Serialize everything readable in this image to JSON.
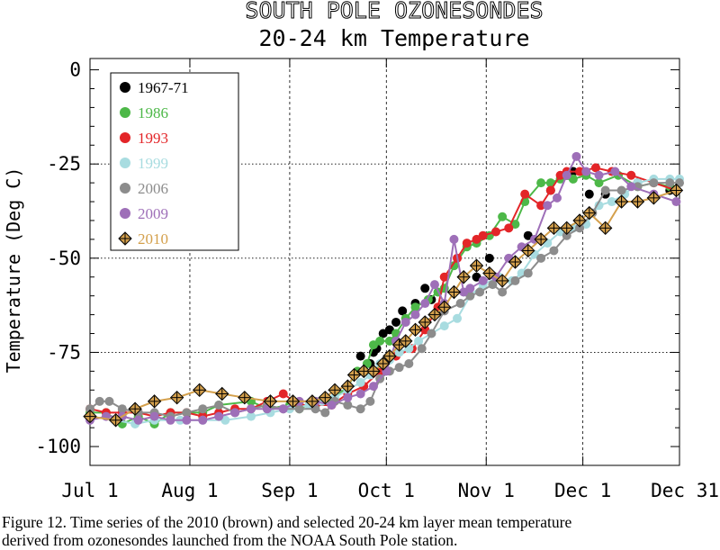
{
  "chart_data": {
    "type": "line",
    "title": "SOUTH POLE OZONESONDES",
    "subtitle": "20-24 km Temperature",
    "ylabel": "Temperature (Deg C)",
    "xlabel": "",
    "ylim": [
      -105,
      3
    ],
    "xlim": [
      0,
      183
    ],
    "x_unit": "days since Jul 1",
    "x_ticks": [
      {
        "x": 0,
        "label": "Jul 1"
      },
      {
        "x": 31,
        "label": "Aug 1"
      },
      {
        "x": 62,
        "label": "Sep 1"
      },
      {
        "x": 92,
        "label": "Oct 1"
      },
      {
        "x": 123,
        "label": "Nov 1"
      },
      {
        "x": 153,
        "label": "Dec 1"
      },
      {
        "x": 183,
        "label": "Dec 31"
      }
    ],
    "y_ticks": [
      0,
      -25,
      -50,
      -75,
      -100
    ],
    "y_tick_labels": [
      "0",
      "-25",
      "-50",
      "-75",
      "-100"
    ],
    "grid": "dotted",
    "legend_position": "top-left",
    "series": [
      {
        "name": "1967-71",
        "color": "#000000",
        "marker": "dot",
        "line": false,
        "points": [
          [
            84,
            -76
          ],
          [
            87,
            -78
          ],
          [
            88,
            -75
          ],
          [
            89,
            -74
          ],
          [
            91,
            -70
          ],
          [
            93,
            -69
          ],
          [
            95,
            -67
          ],
          [
            97,
            -64
          ],
          [
            101,
            -62
          ],
          [
            104,
            -58
          ],
          [
            106,
            -61
          ],
          [
            108,
            -64
          ],
          [
            120,
            -55
          ],
          [
            124,
            -50
          ],
          [
            136,
            -44
          ],
          [
            143,
            -32
          ],
          [
            150,
            -27
          ],
          [
            155,
            -33
          ],
          [
            160,
            -33
          ],
          [
            170,
            -30
          ],
          [
            175,
            -34
          ],
          [
            180,
            -32
          ]
        ]
      },
      {
        "name": "1986",
        "color": "#4db848",
        "marker": "dot",
        "line": true,
        "points": [
          [
            0,
            -91
          ],
          [
            5,
            -91
          ],
          [
            10,
            -94
          ],
          [
            15,
            -92
          ],
          [
            20,
            -94
          ],
          [
            25,
            -91
          ],
          [
            35,
            -91
          ],
          [
            40,
            -89
          ],
          [
            50,
            -88
          ],
          [
            55,
            -90
          ],
          [
            62,
            -89
          ],
          [
            65,
            -90
          ],
          [
            70,
            -88
          ],
          [
            75,
            -88
          ],
          [
            80,
            -84
          ],
          [
            83,
            -80
          ],
          [
            86,
            -78
          ],
          [
            88,
            -73
          ],
          [
            90,
            -72
          ],
          [
            93,
            -72
          ],
          [
            95,
            -70
          ],
          [
            98,
            -66
          ],
          [
            101,
            -63
          ],
          [
            105,
            -61
          ],
          [
            108,
            -59
          ],
          [
            110,
            -58
          ],
          [
            113,
            -52
          ],
          [
            117,
            -47
          ],
          [
            120,
            -46
          ],
          [
            124,
            -44
          ],
          [
            128,
            -39
          ],
          [
            132,
            -41
          ],
          [
            135,
            -35
          ],
          [
            140,
            -30
          ],
          [
            143,
            -30
          ],
          [
            146,
            -29
          ],
          [
            150,
            -29
          ],
          [
            154,
            -28
          ],
          [
            158,
            -30
          ],
          [
            164,
            -28
          ],
          [
            170,
            -31
          ],
          [
            175,
            -30
          ],
          [
            180,
            -31
          ]
        ]
      },
      {
        "name": "1993",
        "color": "#e32528",
        "marker": "dot",
        "line": true,
        "points": [
          [
            0,
            -90
          ],
          [
            5,
            -91
          ],
          [
            10,
            -91
          ],
          [
            15,
            -91
          ],
          [
            20,
            -92
          ],
          [
            25,
            -91
          ],
          [
            30,
            -91
          ],
          [
            35,
            -92
          ],
          [
            40,
            -91
          ],
          [
            45,
            -90
          ],
          [
            50,
            -90
          ],
          [
            55,
            -88
          ],
          [
            60,
            -86
          ],
          [
            65,
            -89
          ],
          [
            70,
            -89
          ],
          [
            75,
            -89
          ],
          [
            80,
            -86
          ],
          [
            85,
            -84
          ],
          [
            90,
            -80
          ],
          [
            95,
            -76
          ],
          [
            100,
            -74
          ],
          [
            104,
            -69
          ],
          [
            108,
            -63
          ],
          [
            110,
            -55
          ],
          [
            114,
            -50
          ],
          [
            117,
            -46
          ],
          [
            120,
            -45
          ],
          [
            122,
            -44
          ],
          [
            126,
            -43
          ],
          [
            130,
            -42
          ],
          [
            135,
            -33
          ],
          [
            140,
            -36
          ],
          [
            143,
            -32
          ],
          [
            146,
            -28
          ],
          [
            148,
            -27
          ],
          [
            152,
            -27
          ],
          [
            157,
            -26
          ],
          [
            162,
            -27
          ],
          [
            168,
            -28
          ],
          [
            175,
            -30
          ],
          [
            182,
            -32
          ]
        ]
      },
      {
        "name": "1999",
        "color": "#a8dce0",
        "marker": "dot",
        "line": true,
        "points": [
          [
            0,
            -92
          ],
          [
            8,
            -93
          ],
          [
            14,
            -94
          ],
          [
            20,
            -93
          ],
          [
            28,
            -93
          ],
          [
            35,
            -93
          ],
          [
            42,
            -93
          ],
          [
            50,
            -92
          ],
          [
            56,
            -91
          ],
          [
            62,
            -90
          ],
          [
            68,
            -89
          ],
          [
            72,
            -88
          ],
          [
            76,
            -87
          ],
          [
            80,
            -85
          ],
          [
            84,
            -83
          ],
          [
            87,
            -81
          ],
          [
            90,
            -78
          ],
          [
            93,
            -77
          ],
          [
            96,
            -75
          ],
          [
            99,
            -74
          ],
          [
            102,
            -72
          ],
          [
            106,
            -70
          ],
          [
            110,
            -68
          ],
          [
            114,
            -66
          ],
          [
            118,
            -60
          ],
          [
            122,
            -57
          ],
          [
            127,
            -55
          ],
          [
            131,
            -56
          ],
          [
            134,
            -54
          ],
          [
            138,
            -49
          ],
          [
            142,
            -46
          ],
          [
            146,
            -43
          ],
          [
            150,
            -42
          ],
          [
            154,
            -41
          ],
          [
            158,
            -36
          ],
          [
            162,
            -35
          ],
          [
            166,
            -33
          ],
          [
            170,
            -30
          ],
          [
            175,
            -29
          ],
          [
            180,
            -29
          ],
          [
            183,
            -29
          ]
        ]
      },
      {
        "name": "2006",
        "color": "#8c8c8c",
        "marker": "dot",
        "line": true,
        "points": [
          [
            0,
            -90
          ],
          [
            3,
            -88
          ],
          [
            6,
            -88
          ],
          [
            10,
            -90
          ],
          [
            15,
            -91
          ],
          [
            20,
            -91
          ],
          [
            25,
            -92
          ],
          [
            30,
            -91
          ],
          [
            35,
            -90
          ],
          [
            40,
            -89
          ],
          [
            45,
            -91
          ],
          [
            50,
            -90
          ],
          [
            55,
            -89
          ],
          [
            60,
            -90
          ],
          [
            65,
            -90
          ],
          [
            70,
            -90
          ],
          [
            73,
            -91
          ],
          [
            76,
            -88
          ],
          [
            80,
            -89
          ],
          [
            84,
            -90
          ],
          [
            87,
            -88
          ],
          [
            90,
            -82
          ],
          [
            93,
            -80
          ],
          [
            96,
            -79
          ],
          [
            99,
            -78
          ],
          [
            103,
            -74
          ],
          [
            106,
            -70
          ],
          [
            110,
            -64
          ],
          [
            115,
            -62
          ],
          [
            118,
            -60
          ],
          [
            121,
            -59
          ],
          [
            125,
            -57
          ],
          [
            128,
            -59
          ],
          [
            132,
            -56
          ],
          [
            136,
            -54
          ],
          [
            140,
            -50
          ],
          [
            144,
            -48
          ],
          [
            148,
            -44
          ],
          [
            152,
            -42
          ],
          [
            156,
            -38
          ],
          [
            160,
            -32
          ],
          [
            165,
            -32
          ],
          [
            170,
            -31
          ],
          [
            175,
            -30
          ],
          [
            180,
            -30
          ],
          [
            183,
            -30
          ]
        ]
      },
      {
        "name": "2009",
        "color": "#9e6fb8",
        "marker": "dot",
        "line": true,
        "points": [
          [
            0,
            -93
          ],
          [
            5,
            -92
          ],
          [
            10,
            -92
          ],
          [
            15,
            -93
          ],
          [
            20,
            -92
          ],
          [
            25,
            -93
          ],
          [
            30,
            -93
          ],
          [
            35,
            -93
          ],
          [
            40,
            -92
          ],
          [
            45,
            -91
          ],
          [
            50,
            -90
          ],
          [
            55,
            -90
          ],
          [
            60,
            -90
          ],
          [
            65,
            -88
          ],
          [
            70,
            -88
          ],
          [
            75,
            -89
          ],
          [
            80,
            -87
          ],
          [
            84,
            -86
          ],
          [
            88,
            -84
          ],
          [
            92,
            -80
          ],
          [
            95,
            -72
          ],
          [
            98,
            -67
          ],
          [
            101,
            -65
          ],
          [
            104,
            -62
          ],
          [
            107,
            -57
          ],
          [
            110,
            -62
          ],
          [
            113,
            -45
          ],
          [
            116,
            -59
          ],
          [
            118,
            -58
          ],
          [
            122,
            -56
          ],
          [
            126,
            -55
          ],
          [
            130,
            -50
          ],
          [
            134,
            -47
          ],
          [
            138,
            -45
          ],
          [
            142,
            -36
          ],
          [
            145,
            -34
          ],
          [
            148,
            -28
          ],
          [
            151,
            -23
          ],
          [
            154,
            -27
          ],
          [
            158,
            -28
          ],
          [
            163,
            -27
          ],
          [
            168,
            -31
          ],
          [
            175,
            -33
          ],
          [
            182,
            -35
          ]
        ]
      },
      {
        "name": "2010",
        "color": "#d4a04c",
        "marker": "diamond-plus",
        "line": true,
        "points": [
          [
            0,
            -92
          ],
          [
            8,
            -93
          ],
          [
            14,
            -90
          ],
          [
            20,
            -88
          ],
          [
            27,
            -87
          ],
          [
            34,
            -85
          ],
          [
            41,
            -86
          ],
          [
            48,
            -87
          ],
          [
            56,
            -88
          ],
          [
            63,
            -88
          ],
          [
            69,
            -88
          ],
          [
            73,
            -87
          ],
          [
            76,
            -85
          ],
          [
            80,
            -84
          ],
          [
            82,
            -81
          ],
          [
            85,
            -80
          ],
          [
            88,
            -80
          ],
          [
            91,
            -78
          ],
          [
            93,
            -76
          ],
          [
            96,
            -73
          ],
          [
            98,
            -72
          ],
          [
            101,
            -69
          ],
          [
            104,
            -67
          ],
          [
            107,
            -65
          ],
          [
            110,
            -63
          ],
          [
            113,
            -59
          ],
          [
            116,
            -55
          ],
          [
            120,
            -52
          ],
          [
            124,
            -54
          ],
          [
            128,
            -56
          ],
          [
            132,
            -51
          ],
          [
            136,
            -48
          ],
          [
            140,
            -45
          ],
          [
            144,
            -42
          ],
          [
            148,
            -42
          ],
          [
            152,
            -40
          ],
          [
            155,
            -38
          ],
          [
            160,
            -42
          ],
          [
            165,
            -35
          ],
          [
            170,
            -35
          ],
          [
            175,
            -34
          ],
          [
            182,
            -32
          ]
        ]
      }
    ]
  },
  "caption_lines": [
    "Figure 12. Time series of the 2010 (brown) and selected 20-24 km layer mean temperature",
    "derived from ozonesondes launched from the NOAA South Pole station."
  ]
}
